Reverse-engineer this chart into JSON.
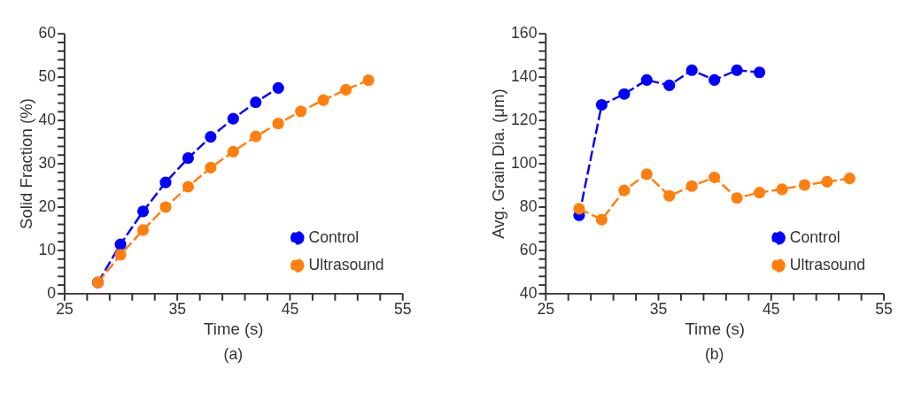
{
  "chart_data": [
    {
      "type": "line",
      "xlabel": "Time (s)",
      "ylabel": "Solid Fraction (%)",
      "annotations": [
        "(a)"
      ],
      "legend": "bottom right",
      "marker": "circle",
      "line_style": "dashed",
      "grid": false,
      "xlim": [
        25,
        55
      ],
      "ylim": [
        0,
        60
      ],
      "xticks": [
        25,
        {
          "value": 27,
          "label": null
        },
        {
          "value": 29,
          "label": null
        },
        {
          "value": 31,
          "label": null
        },
        {
          "value": 33,
          "label": null
        },
        35,
        {
          "value": 37,
          "label": null
        },
        {
          "value": 39,
          "label": null
        },
        {
          "value": 41,
          "label": null
        },
        {
          "value": 43,
          "label": null
        },
        45,
        {
          "value": 47,
          "label": null
        },
        {
          "value": 49,
          "label": null
        },
        {
          "value": 51,
          "label": null
        },
        {
          "value": 53,
          "label": null
        },
        55
      ],
      "yticks": [
        0,
        {
          "value": 2,
          "label": null
        },
        {
          "value": 4,
          "label": null
        },
        {
          "value": 6,
          "label": null
        },
        {
          "value": 8,
          "label": null
        },
        10,
        {
          "value": 12,
          "label": null
        },
        {
          "value": 14,
          "label": null
        },
        {
          "value": 16,
          "label": null
        },
        {
          "value": 18,
          "label": null
        },
        20,
        {
          "value": 22,
          "label": null
        },
        {
          "value": 24,
          "label": null
        },
        {
          "value": 26,
          "label": null
        },
        {
          "value": 28,
          "label": null
        },
        30,
        {
          "value": 32,
          "label": null
        },
        {
          "value": 34,
          "label": null
        },
        {
          "value": 36,
          "label": null
        },
        {
          "value": 38,
          "label": null
        },
        40,
        {
          "value": 42,
          "label": null
        },
        {
          "value": 44,
          "label": null
        },
        {
          "value": 46,
          "label": null
        },
        {
          "value": 48,
          "label": null
        },
        50,
        {
          "value": 52,
          "label": null
        },
        {
          "value": 54,
          "label": null
        },
        {
          "value": 56,
          "label": null
        },
        {
          "value": 58,
          "label": null
        },
        60
      ],
      "series": [
        {
          "name": "Control",
          "color": "#0000ff",
          "x": [
            28,
            30,
            32,
            34,
            36,
            38,
            40,
            42,
            44
          ],
          "values": [
            2.5,
            11.3,
            18.9,
            25.6,
            31.2,
            36.1,
            40.3,
            44.1,
            47.4
          ]
        },
        {
          "name": "Ultrasound",
          "color": "#ff7f0e",
          "x": [
            28,
            30,
            32,
            34,
            36,
            38,
            40,
            42,
            44,
            46,
            48,
            50,
            52
          ],
          "values": [
            2.5,
            8.9,
            14.6,
            19.9,
            24.6,
            29.0,
            32.7,
            36.2,
            39.2,
            42.0,
            44.6,
            47.0,
            49.2
          ]
        }
      ]
    },
    {
      "type": "line",
      "xlabel": "Time (s)",
      "ylabel": "Avg. Grain Dia. (μm)",
      "annotations": [
        "(b)"
      ],
      "legend": "bottom right",
      "marker": "circle",
      "line_style": "dashed",
      "grid": false,
      "xlim": [
        25,
        55
      ],
      "ylim": [
        40,
        160
      ],
      "xticks": [
        25,
        {
          "value": 27,
          "label": null
        },
        {
          "value": 29,
          "label": null
        },
        {
          "value": 31,
          "label": null
        },
        {
          "value": 33,
          "label": null
        },
        35,
        {
          "value": 37,
          "label": null
        },
        {
          "value": 39,
          "label": null
        },
        {
          "value": 41,
          "label": null
        },
        {
          "value": 43,
          "label": null
        },
        45,
        {
          "value": 47,
          "label": null
        },
        {
          "value": 49,
          "label": null
        },
        {
          "value": 51,
          "label": null
        },
        {
          "value": 53,
          "label": null
        },
        55
      ],
      "yticks": [
        40,
        {
          "value": 44,
          "label": null
        },
        {
          "value": 48,
          "label": null
        },
        {
          "value": 52,
          "label": null
        },
        {
          "value": 56,
          "label": null
        },
        60,
        {
          "value": 64,
          "label": null
        },
        {
          "value": 68,
          "label": null
        },
        {
          "value": 72,
          "label": null
        },
        {
          "value": 76,
          "label": null
        },
        80,
        {
          "value": 84,
          "label": null
        },
        {
          "value": 88,
          "label": null
        },
        {
          "value": 92,
          "label": null
        },
        {
          "value": 96,
          "label": null
        },
        100,
        {
          "value": 104,
          "label": null
        },
        {
          "value": 108,
          "label": null
        },
        {
          "value": 112,
          "label": null
        },
        {
          "value": 116,
          "label": null
        },
        120,
        {
          "value": 124,
          "label": null
        },
        {
          "value": 128,
          "label": null
        },
        {
          "value": 132,
          "label": null
        },
        {
          "value": 136,
          "label": null
        },
        140,
        {
          "value": 144,
          "label": null
        },
        {
          "value": 148,
          "label": null
        },
        {
          "value": 152,
          "label": null
        },
        {
          "value": 156,
          "label": null
        },
        160
      ],
      "series": [
        {
          "name": "Control",
          "color": "#0000ff",
          "x": [
            28,
            30,
            32,
            34,
            36,
            38,
            40,
            42,
            44
          ],
          "values": [
            76,
            127,
            132,
            138.5,
            136,
            143,
            138.5,
            143,
            142
          ]
        },
        {
          "name": "Ultrasound",
          "color": "#ff7f0e",
          "x": [
            28,
            30,
            32,
            34,
            36,
            38,
            40,
            42,
            44,
            46,
            48,
            50,
            52
          ],
          "values": [
            79,
            74,
            87.5,
            95,
            85,
            89.5,
            93.5,
            84,
            86.5,
            88,
            90,
            91.5,
            93
          ]
        }
      ]
    }
  ]
}
